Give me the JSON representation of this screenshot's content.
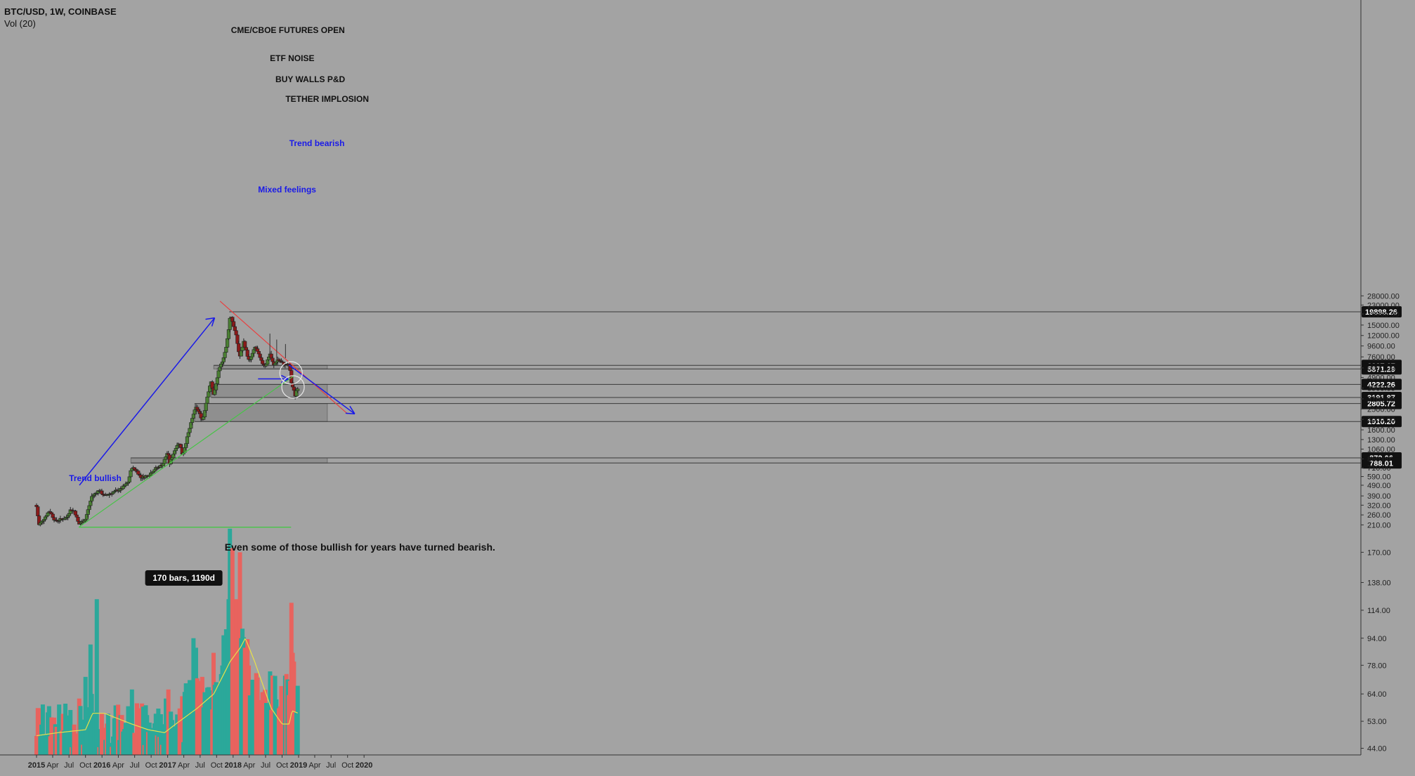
{
  "header": {
    "symbol_line": "BTC/USD, 1W, COINBASE",
    "volume_line": "Vol (20)"
  },
  "colors": {
    "background": "#a3a3a3",
    "up_candle": "#4a7f33",
    "down_candle": "#8b1a1a",
    "volume_up": "#2ba89a",
    "volume_down": "#e8635e",
    "volume_ma": "#e8e04a",
    "zone": "#8f8f8f",
    "trend_bullish": "#1a1ae8",
    "trend_red": "#e84040",
    "trend_green": "#47c447"
  },
  "chart_data": {
    "type": "candlestick",
    "title": "BTC/USD, 1W, COINBASE",
    "scale": "log",
    "x_ticks": [
      "2015",
      "Apr",
      "Jul",
      "Oct",
      "2016",
      "Apr",
      "Jul",
      "Oct",
      "2017",
      "Apr",
      "Jul",
      "Oct",
      "2018",
      "Apr",
      "Jul",
      "Oct",
      "2019",
      "Apr",
      "Jul",
      "Oct",
      "2020"
    ],
    "y_ticks": [
      "28000.00",
      "23000.00",
      "19000.00",
      "15000.00",
      "12000.00",
      "9600.00",
      "7600.00",
      "6000.00",
      "4900.00",
      "3900.00",
      "3100.00",
      "2500.00",
      "2000.00",
      "1600.00",
      "1300.00",
      "1060.00",
      "860.00",
      "710.00",
      "590.00",
      "490.00",
      "390.00",
      "320.00",
      "260.00",
      "210.00",
      "170.00",
      "138.00",
      "114.00",
      "94.00",
      "78.00",
      "64.00",
      "53.00",
      "44.00"
    ],
    "price_levels": [
      "19898.26",
      "6337.67",
      "5871.29",
      "4222.26",
      "3191.87",
      "2805.72",
      "1910.20",
      "879.06",
      "788.01"
    ],
    "annotations": {
      "futures": "CME/CBOE FUTURES OPEN",
      "etf": "ETF NOISE",
      "buywalls": "BUY WALLS P&D",
      "tether": "TETHER IMPLOSION",
      "trend_bearish": "Trend bearish",
      "mixed": "Mixed feelings",
      "trend_bullish": "Trend bullish",
      "comment": "Even some of those bullish for years have turned bearish.",
      "bars": "170 bars, 1190d"
    },
    "price_anchors": [
      {
        "date": "2015-01-01",
        "close": 310
      },
      {
        "date": "2015-01-15",
        "close": 210
      },
      {
        "date": "2015-02-15",
        "close": 245
      },
      {
        "date": "2015-03-15",
        "close": 285
      },
      {
        "date": "2015-04-15",
        "close": 228
      },
      {
        "date": "2015-05-15",
        "close": 236
      },
      {
        "date": "2015-06-15",
        "close": 243
      },
      {
        "date": "2015-07-10",
        "close": 290
      },
      {
        "date": "2015-08-01",
        "close": 282
      },
      {
        "date": "2015-08-25",
        "close": 212
      },
      {
        "date": "2015-10-01",
        "close": 238
      },
      {
        "date": "2015-11-05",
        "close": 385
      },
      {
        "date": "2015-12-15",
        "close": 440
      },
      {
        "date": "2016-01-15",
        "close": 390
      },
      {
        "date": "2016-03-01",
        "close": 420
      },
      {
        "date": "2016-04-15",
        "close": 450
      },
      {
        "date": "2016-05-25",
        "close": 520
      },
      {
        "date": "2016-06-15",
        "close": 720
      },
      {
        "date": "2016-07-15",
        "close": 660
      },
      {
        "date": "2016-08-05",
        "close": 575
      },
      {
        "date": "2016-09-15",
        "close": 605
      },
      {
        "date": "2016-10-20",
        "close": 690
      },
      {
        "date": "2016-12-05",
        "close": 760
      },
      {
        "date": "2017-01-01",
        "close": 1000
      },
      {
        "date": "2017-01-12",
        "close": 780
      },
      {
        "date": "2017-02-20",
        "close": 1150
      },
      {
        "date": "2017-03-10",
        "close": 1200
      },
      {
        "date": "2017-03-25",
        "close": 930
      },
      {
        "date": "2017-05-10",
        "close": 1800
      },
      {
        "date": "2017-05-25",
        "close": 2250
      },
      {
        "date": "2017-06-10",
        "close": 2600
      },
      {
        "date": "2017-07-16",
        "close": 1950
      },
      {
        "date": "2017-08-10",
        "close": 3300
      },
      {
        "date": "2017-09-01",
        "close": 4500
      },
      {
        "date": "2017-09-15",
        "close": 3300
      },
      {
        "date": "2017-10-10",
        "close": 5400
      },
      {
        "date": "2017-11-05",
        "close": 7200
      },
      {
        "date": "2017-11-25",
        "close": 9500
      },
      {
        "date": "2017-12-17",
        "close": 19000
      },
      {
        "date": "2018-01-05",
        "close": 14500
      },
      {
        "date": "2018-01-20",
        "close": 11500
      },
      {
        "date": "2018-02-06",
        "close": 7500
      },
      {
        "date": "2018-03-01",
        "close": 10500
      },
      {
        "date": "2018-04-01",
        "close": 6800
      },
      {
        "date": "2018-05-05",
        "close": 9500
      },
      {
        "date": "2018-06-10",
        "close": 6700
      },
      {
        "date": "2018-07-01",
        "close": 6300
      },
      {
        "date": "2018-07-25",
        "close": 8200
      },
      {
        "date": "2018-08-15",
        "close": 6300
      },
      {
        "date": "2018-09-05",
        "close": 7200
      },
      {
        "date": "2018-10-15",
        "close": 6450
      },
      {
        "date": "2018-11-12",
        "close": 6350
      },
      {
        "date": "2018-11-20",
        "close": 4500
      },
      {
        "date": "2018-12-01",
        "close": 3900
      },
      {
        "date": "2018-12-15",
        "close": 3250
      },
      {
        "date": "2018-12-22",
        "close": 3900
      },
      {
        "date": "2018-12-31",
        "close": 3950
      }
    ],
    "volume_ma_anchors": [
      {
        "date": "2015-01-01",
        "value": 48
      },
      {
        "date": "2015-05-01",
        "value": 49
      },
      {
        "date": "2015-10-01",
        "value": 50
      },
      {
        "date": "2015-11-10",
        "value": 56
      },
      {
        "date": "2016-01-15",
        "value": 56
      },
      {
        "date": "2016-06-15",
        "value": 52
      },
      {
        "date": "2016-09-15",
        "value": 50
      },
      {
        "date": "2016-12-15",
        "value": 49
      },
      {
        "date": "2017-02-15",
        "value": 52
      },
      {
        "date": "2017-06-15",
        "value": 58
      },
      {
        "date": "2017-09-15",
        "value": 64
      },
      {
        "date": "2017-12-15",
        "value": 80
      },
      {
        "date": "2018-02-10",
        "value": 88
      },
      {
        "date": "2018-03-10",
        "value": 94
      },
      {
        "date": "2018-05-01",
        "value": 80
      },
      {
        "date": "2018-08-01",
        "value": 58
      },
      {
        "date": "2018-10-01",
        "value": 52
      },
      {
        "date": "2018-11-10",
        "value": 52
      },
      {
        "date": "2018-11-25",
        "value": 57
      },
      {
        "date": "2018-12-31",
        "value": 56
      }
    ],
    "volume_spikes": [
      {
        "date": "2015-01-15",
        "value": 58
      },
      {
        "date": "2015-08-25",
        "value": 62
      },
      {
        "date": "2015-10-01",
        "value": 72
      },
      {
        "date": "2015-10-29",
        "value": 90
      },
      {
        "date": "2015-11-05",
        "value": 64
      },
      {
        "date": "2015-12-01",
        "value": 123
      },
      {
        "date": "2016-06-15",
        "value": 66
      },
      {
        "date": "2016-07-15",
        "value": 60
      },
      {
        "date": "2016-12-25",
        "value": 62
      },
      {
        "date": "2017-01-05",
        "value": 66
      },
      {
        "date": "2017-03-20",
        "value": 63
      },
      {
        "date": "2017-05-25",
        "value": 94
      },
      {
        "date": "2017-06-10",
        "value": 88
      },
      {
        "date": "2017-07-15",
        "value": 72
      },
      {
        "date": "2017-09-15",
        "value": 85
      },
      {
        "date": "2017-11-25",
        "value": 100
      },
      {
        "date": "2017-12-10",
        "value": 123
      },
      {
        "date": "2017-12-17",
        "value": 200
      },
      {
        "date": "2017-12-31",
        "value": 175
      },
      {
        "date": "2018-01-20",
        "value": 123
      },
      {
        "date": "2018-02-06",
        "value": 170
      },
      {
        "date": "2018-03-10",
        "value": 88
      },
      {
        "date": "2018-11-20",
        "value": 120
      },
      {
        "date": "2018-12-01",
        "value": 85
      },
      {
        "date": "2018-12-08",
        "value": 80
      }
    ]
  }
}
